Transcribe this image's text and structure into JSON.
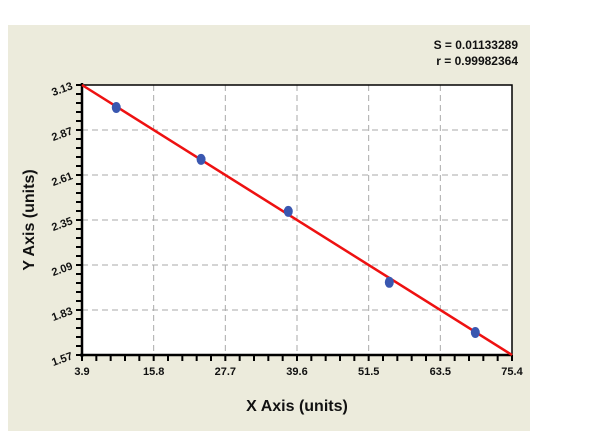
{
  "panel": {
    "background": "#ecebdc"
  },
  "stats": {
    "s_line": "S = 0.01133289",
    "r_line": "r = 0.99982364"
  },
  "axes": {
    "xlabel": "X Axis (units)",
    "ylabel": "Y Axis (units)",
    "x_ticks": [
      "3.9",
      "15.8",
      "27.7",
      "39.6",
      "51.5",
      "63.5",
      "75.4"
    ],
    "y_ticks": [
      "3.13",
      "2.87",
      "2.61",
      "2.35",
      "2.09",
      "1.83",
      "1.57"
    ]
  },
  "colors": {
    "fit_line": "#ee1111",
    "points": "#3a57b0",
    "grid": "#aaaaaa",
    "axis": "#000000"
  },
  "chart_data": {
    "type": "scatter",
    "title": "",
    "xlabel": "X Axis (units)",
    "ylabel": "Y Axis (units)",
    "xlim": [
      3.9,
      75.4
    ],
    "ylim": [
      1.57,
      3.13
    ],
    "x_tick_labels": [
      "3.9",
      "15.8",
      "27.7",
      "39.6",
      "51.5",
      "63.5",
      "75.4"
    ],
    "y_tick_labels": [
      "1.57",
      "1.83",
      "2.09",
      "2.35",
      "2.61",
      "2.87",
      "3.13"
    ],
    "grid": true,
    "grid_style": "dashed",
    "series": [
      {
        "name": "Data points",
        "x": [
          9.6,
          23.7,
          38.2,
          55.0,
          69.3
        ],
        "y": [
          3.0,
          2.7,
          2.4,
          1.99,
          1.7
        ]
      },
      {
        "name": "Linear fit",
        "type": "line",
        "x": [
          3.9,
          75.4
        ],
        "y": [
          3.13,
          1.57
        ]
      }
    ],
    "annotations": [
      "S = 0.01133289",
      "r = 0.99982364"
    ],
    "legend": "none"
  }
}
